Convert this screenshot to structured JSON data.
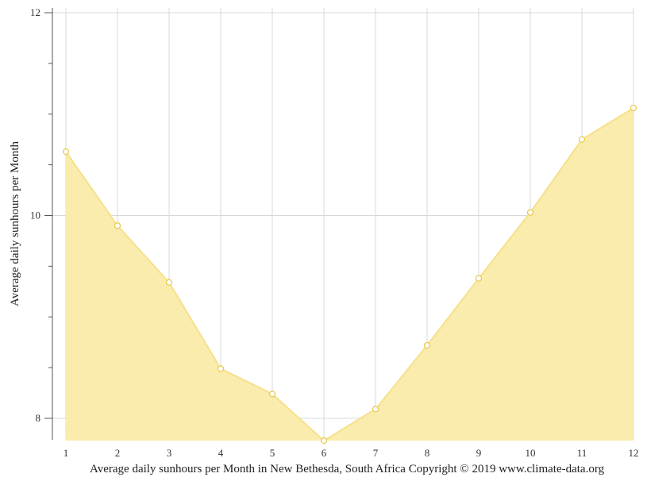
{
  "chart_data": {
    "type": "area",
    "x": [
      1,
      2,
      3,
      4,
      5,
      6,
      7,
      8,
      9,
      10,
      11,
      12
    ],
    "series": [
      {
        "values": [
          10.63,
          9.9,
          9.34,
          8.49,
          8.24,
          7.78,
          8.09,
          8.72,
          9.38,
          10.03,
          10.75,
          11.06
        ]
      }
    ],
    "ylabel": "Average daily sunhours per Month",
    "xlabel": "",
    "ylim": [
      7.78,
      12
    ],
    "yticks": [
      8,
      10,
      12
    ],
    "xticks": [
      1,
      2,
      3,
      4,
      5,
      6,
      7,
      8,
      9,
      10,
      11,
      12
    ],
    "grid": true,
    "colors": {
      "fill": "#f9eba9",
      "line": "#f7e08a",
      "marker_stroke": "#e8c84a",
      "grid": "#d8d8d8"
    }
  },
  "caption": "Average daily sunhours per Month in New Bethesda, South Africa Copyright © 2019 www.climate-data.org"
}
